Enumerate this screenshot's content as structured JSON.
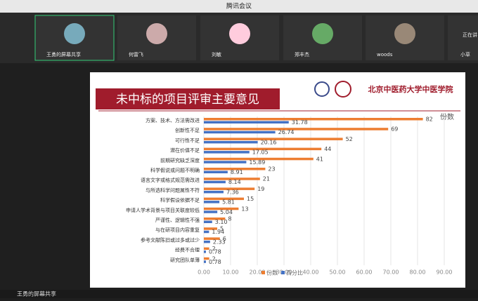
{
  "window": {
    "title": "腾讯会议",
    "share_label": "王勇的屏幕共享",
    "speaking": "正在讲",
    "participants": [
      "王勇的屏幕共享",
      "何雷飞",
      "刘敏",
      "郑丰杰",
      "woods",
      "小草"
    ]
  },
  "slide": {
    "title": "未中标的项目评审主要意见",
    "institution": "北京中医药大学中医学院"
  },
  "chart_data": {
    "type": "hbar",
    "annotation": "份数",
    "categories": [
      "方案、技术、方法需改进",
      "创新性不足",
      "可行性不足",
      "潜在价值不足",
      "前期研究缺乏深度",
      "科学假说或问题不明确",
      "语言文字或格式规范需改进",
      "与所选科学问题属性不符",
      "科学假设依据不足",
      "申请人学术背景与项目关联度较低",
      "严谨性、逻辑性不强",
      "与在研项目内容重复",
      "参考文献陈旧或过多或过少",
      "经费不合理",
      "研究团队单薄"
    ],
    "series": [
      {
        "name": "份数",
        "color": "#ed7d31",
        "values": [
          82,
          69,
          52,
          44,
          41,
          23,
          21,
          19,
          15,
          13,
          8,
          5,
          6,
          2,
          2
        ]
      },
      {
        "name": "百分比",
        "color": "#4472c4",
        "values": [
          31.78,
          26.74,
          20.16,
          17.05,
          15.89,
          8.91,
          8.14,
          7.36,
          5.81,
          5.04,
          3.1,
          1.94,
          2.33,
          0.78,
          0.78
        ],
        "value_labels": [
          "31.78",
          "26.74",
          "20.16",
          "17.05",
          "15.89",
          "8.91",
          "8.14",
          "7.36",
          "5.81",
          "5.04",
          "3.10",
          "1.94",
          "2.33",
          "0.78",
          "0.78"
        ]
      }
    ],
    "xlim": [
      0,
      90
    ],
    "xticks": [
      {
        "value": 0,
        "label": "0.00"
      },
      {
        "value": 10,
        "label": "10.00"
      },
      {
        "value": 20,
        "label": "20.00"
      },
      {
        "value": 30,
        "label": "30.00"
      },
      {
        "value": 40,
        "label": "40.00"
      },
      {
        "value": 50,
        "label": "50.00"
      },
      {
        "value": 60,
        "label": "60.00"
      },
      {
        "value": 70,
        "label": "70.00"
      },
      {
        "value": 80,
        "label": "80.00"
      },
      {
        "value": 90,
        "label": "90.00"
      }
    ],
    "legend": "bottom"
  }
}
